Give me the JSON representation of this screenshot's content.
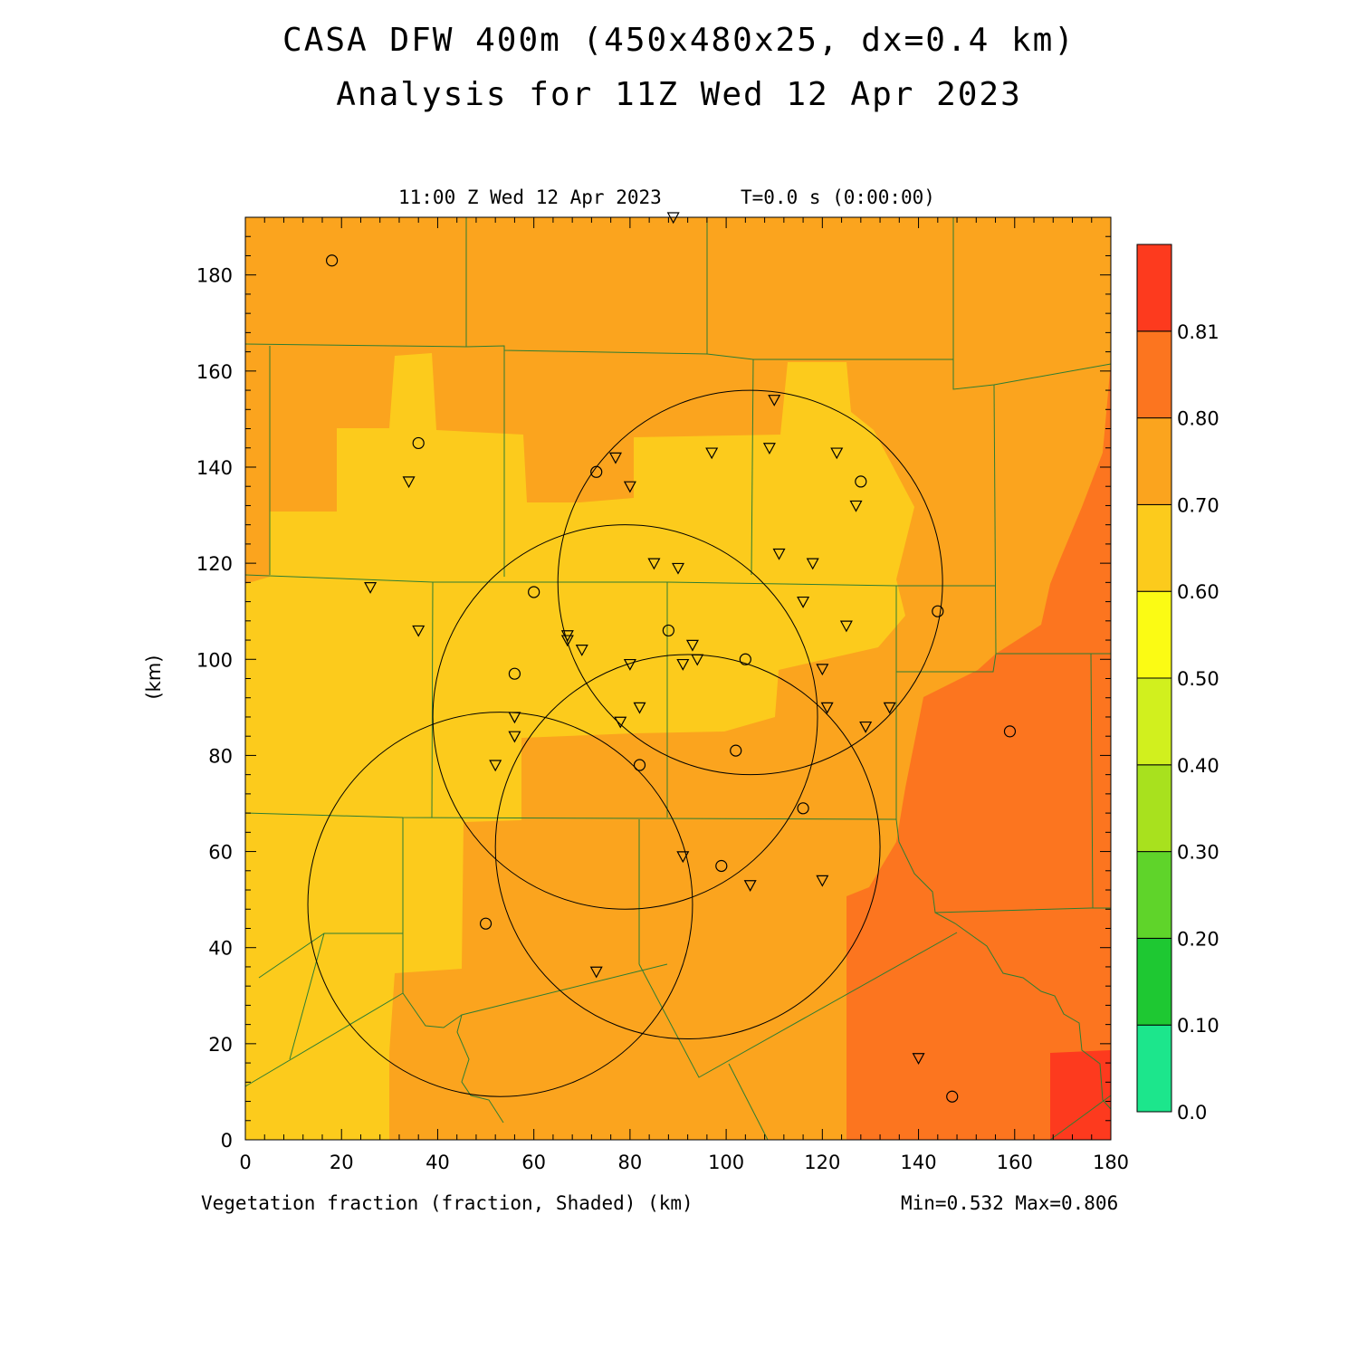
{
  "header": {
    "title_line1": "CASA DFW 400m (450x480x25, dx=0.4 km)",
    "title_line2": "Analysis for 11Z Wed 12 Apr 2023"
  },
  "plot": {
    "time_label": "11:00 Z Wed 12 Apr 2023",
    "model_time": "T=0.0 s (0:00:00)",
    "x_label": "Vegetation fraction (fraction, Shaded)  (km)",
    "y_label": "(km)",
    "min_max": "Min=0.532 Max=0.806"
  },
  "colors": {
    "c060_070": "#fba41e",
    "c050_060": "#fccb1c",
    "c070_080": "#fc751f",
    "c080_081": "#fd3a1e",
    "county_line": "#2e7d32",
    "radar_ring": "#000000"
  },
  "chart_data": {
    "type": "heatmap",
    "variable": "Vegetation fraction",
    "x_ticks": [
      0,
      20,
      40,
      60,
      80,
      100,
      120,
      140,
      160,
      180
    ],
    "y_ticks": [
      0,
      20,
      40,
      60,
      80,
      100,
      120,
      140,
      160,
      180
    ],
    "xlim": [
      0,
      180
    ],
    "ylim": [
      0,
      192
    ],
    "colorbar": {
      "labels": [
        "0.0",
        "0.10",
        "0.20",
        "0.30",
        "0.40",
        "0.50",
        "0.60",
        "0.70",
        "0.80",
        "0.81"
      ],
      "colors": [
        "#1ce68c",
        "#1ec832",
        "#5fd42a",
        "#a8e11e",
        "#d1f01e",
        "#fbfb14",
        "#fccb1c",
        "#fba41e",
        "#fc751f",
        "#fd3a1e"
      ]
    },
    "min": 0.532,
    "max": 0.806,
    "radar_rings": [
      {
        "cx": 105,
        "cy": 116,
        "r": 40
      },
      {
        "cx": 79,
        "cy": 88,
        "r": 40
      },
      {
        "cx": 92,
        "cy": 61,
        "r": 40
      },
      {
        "cx": 53,
        "cy": 49,
        "r": 40
      }
    ],
    "station_circles": [
      [
        18,
        183
      ],
      [
        36,
        145
      ],
      [
        73,
        139
      ],
      [
        128,
        137
      ],
      [
        60,
        114
      ],
      [
        144,
        110
      ],
      [
        56,
        97
      ],
      [
        88,
        106
      ],
      [
        104,
        100
      ],
      [
        102,
        81
      ],
      [
        82,
        78
      ],
      [
        116,
        69
      ],
      [
        159,
        85
      ],
      [
        99,
        57
      ],
      [
        50,
        45
      ],
      [
        147,
        9
      ]
    ],
    "station_triangles": [
      [
        89,
        192
      ],
      [
        110,
        154
      ],
      [
        77,
        142
      ],
      [
        97,
        143
      ],
      [
        109,
        144
      ],
      [
        123,
        143
      ],
      [
        34,
        137
      ],
      [
        80,
        136
      ],
      [
        127,
        132
      ],
      [
        111,
        122
      ],
      [
        85,
        120
      ],
      [
        90,
        119
      ],
      [
        118,
        120
      ],
      [
        26,
        115
      ],
      [
        116,
        112
      ],
      [
        125,
        107
      ],
      [
        36,
        106
      ],
      [
        67,
        105
      ],
      [
        67,
        104
      ],
      [
        70,
        102
      ],
      [
        93,
        103
      ],
      [
        80,
        99
      ],
      [
        91,
        99
      ],
      [
        94,
        100
      ],
      [
        120,
        98
      ],
      [
        56,
        88
      ],
      [
        78,
        87
      ],
      [
        82,
        90
      ],
      [
        121,
        90
      ],
      [
        129,
        86
      ],
      [
        56,
        84
      ],
      [
        52,
        78
      ],
      [
        134,
        90
      ],
      [
        91,
        59
      ],
      [
        105,
        53
      ],
      [
        120,
        54
      ],
      [
        73,
        35
      ],
      [
        140,
        17
      ]
    ]
  }
}
